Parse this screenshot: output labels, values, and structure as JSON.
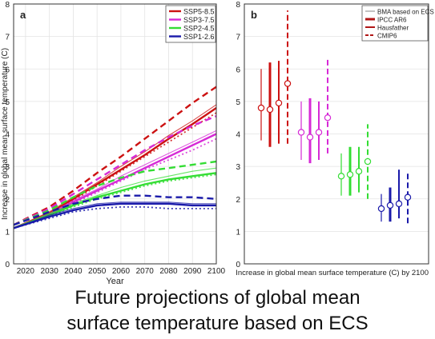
{
  "caption": {
    "line1": "Future projections of global mean",
    "line2": "surface temperature based on ECS"
  },
  "chart_data": [
    {
      "type": "line",
      "panel_label": "a",
      "xlabel": "Year",
      "ylabel": "Increase in global mean surface temperature (C)",
      "xlim": [
        2015,
        2100
      ],
      "ylim": [
        0,
        8
      ],
      "xticks": [
        2020,
        2030,
        2040,
        2050,
        2060,
        2070,
        2080,
        2090,
        2100
      ],
      "yticks": [
        0,
        1,
        2,
        3,
        4,
        5,
        6,
        7,
        8
      ],
      "grid": true,
      "legend": {
        "placement": "top-right",
        "entries": [
          {
            "label": "SSP5-8.5",
            "color": "#cc1111"
          },
          {
            "label": "SSP3-7.5",
            "color": "#d629d6"
          },
          {
            "label": "SSP2-4.5",
            "color": "#33dd33"
          },
          {
            "label": "SSP1-2.6",
            "color": "#1a1aaa"
          }
        ]
      },
      "series": [
        {
          "name": "SSP5-8.5",
          "color": "#cc1111",
          "style": "dashed",
          "x": [
            2015,
            2030,
            2040,
            2050,
            2060,
            2070,
            2080,
            2090,
            2100
          ],
          "values": [
            1.2,
            1.75,
            2.25,
            2.8,
            3.3,
            3.85,
            4.4,
            4.95,
            5.45
          ]
        },
        {
          "name": "SSP5-8.5",
          "color": "#cc1111",
          "style": "solid",
          "x": [
            2015,
            2030,
            2040,
            2050,
            2060,
            2070,
            2080,
            2090,
            2100
          ],
          "values": [
            1.1,
            1.55,
            2.0,
            2.45,
            2.9,
            3.35,
            3.85,
            4.3,
            4.8
          ]
        },
        {
          "name": "SSP5-8.5",
          "color": "#cc1111",
          "style": "thin",
          "x": [
            2015,
            2030,
            2040,
            2050,
            2060,
            2070,
            2080,
            2090,
            2100
          ],
          "values": [
            1.1,
            1.6,
            2.05,
            2.5,
            3.0,
            3.45,
            3.95,
            4.4,
            4.9
          ]
        },
        {
          "name": "SSP5-8.5",
          "color": "#cc1111",
          "style": "dotted",
          "x": [
            2015,
            2030,
            2040,
            2050,
            2060,
            2070,
            2080,
            2090,
            2100
          ],
          "values": [
            1.1,
            1.5,
            1.95,
            2.4,
            2.85,
            3.3,
            3.75,
            4.2,
            4.65
          ]
        },
        {
          "name": "SSP3-7.5",
          "color": "#d629d6",
          "style": "dashed",
          "x": [
            2015,
            2030,
            2040,
            2050,
            2060,
            2070,
            2080,
            2090,
            2100
          ],
          "values": [
            1.2,
            1.7,
            2.15,
            2.6,
            3.05,
            3.5,
            3.9,
            4.25,
            4.55
          ]
        },
        {
          "name": "SSP3-7.5",
          "color": "#d629d6",
          "style": "solid",
          "x": [
            2015,
            2030,
            2040,
            2050,
            2060,
            2070,
            2080,
            2090,
            2100
          ],
          "values": [
            1.1,
            1.5,
            1.9,
            2.25,
            2.6,
            2.95,
            3.3,
            3.65,
            4.0
          ]
        },
        {
          "name": "SSP3-7.5",
          "color": "#d629d6",
          "style": "thin",
          "x": [
            2015,
            2030,
            2040,
            2050,
            2060,
            2070,
            2080,
            2090,
            2100
          ],
          "values": [
            1.1,
            1.55,
            1.95,
            2.3,
            2.7,
            3.05,
            3.4,
            3.75,
            4.1
          ]
        },
        {
          "name": "SSP3-7.5",
          "color": "#d629d6",
          "style": "dotted",
          "x": [
            2015,
            2030,
            2040,
            2050,
            2060,
            2070,
            2080,
            2090,
            2100
          ],
          "values": [
            1.1,
            1.45,
            1.85,
            2.2,
            2.55,
            2.9,
            3.2,
            3.5,
            3.85
          ]
        },
        {
          "name": "SSP2-4.5",
          "color": "#33dd33",
          "style": "dashed",
          "x": [
            2015,
            2030,
            2040,
            2050,
            2060,
            2070,
            2080,
            2090,
            2100
          ],
          "values": [
            1.2,
            1.65,
            2.05,
            2.4,
            2.65,
            2.85,
            2.95,
            3.05,
            3.15
          ]
        },
        {
          "name": "SSP2-4.5",
          "color": "#33dd33",
          "style": "solid",
          "x": [
            2015,
            2030,
            2040,
            2050,
            2060,
            2070,
            2080,
            2090,
            2100
          ],
          "values": [
            1.1,
            1.5,
            1.8,
            2.05,
            2.25,
            2.45,
            2.6,
            2.7,
            2.8
          ]
        },
        {
          "name": "SSP2-4.5",
          "color": "#33dd33",
          "style": "thin",
          "x": [
            2015,
            2030,
            2040,
            2050,
            2060,
            2070,
            2080,
            2090,
            2100
          ],
          "values": [
            1.1,
            1.55,
            1.85,
            2.1,
            2.35,
            2.55,
            2.7,
            2.85,
            2.95
          ]
        },
        {
          "name": "SSP2-4.5",
          "color": "#33dd33",
          "style": "dotted",
          "x": [
            2015,
            2030,
            2040,
            2050,
            2060,
            2070,
            2080,
            2090,
            2100
          ],
          "values": [
            1.1,
            1.45,
            1.75,
            2.0,
            2.2,
            2.4,
            2.55,
            2.65,
            2.75
          ]
        },
        {
          "name": "SSP1-2.6",
          "color": "#1a1aaa",
          "style": "dashed",
          "x": [
            2015,
            2030,
            2040,
            2050,
            2060,
            2070,
            2080,
            2090,
            2100
          ],
          "values": [
            1.2,
            1.6,
            1.85,
            2.0,
            2.1,
            2.1,
            2.05,
            2.05,
            2.0
          ]
        },
        {
          "name": "SSP1-2.6",
          "color": "#1a1aaa",
          "style": "solid",
          "x": [
            2015,
            2030,
            2040,
            2050,
            2060,
            2070,
            2080,
            2090,
            2100
          ],
          "values": [
            1.1,
            1.45,
            1.65,
            1.8,
            1.85,
            1.85,
            1.85,
            1.8,
            1.8
          ]
        },
        {
          "name": "SSP1-2.6",
          "color": "#1a1aaa",
          "style": "thin",
          "x": [
            2015,
            2030,
            2040,
            2050,
            2060,
            2070,
            2080,
            2090,
            2100
          ],
          "values": [
            1.1,
            1.5,
            1.7,
            1.85,
            1.9,
            1.9,
            1.9,
            1.85,
            1.85
          ]
        },
        {
          "name": "SSP1-2.6",
          "color": "#1a1aaa",
          "style": "dotted",
          "x": [
            2015,
            2030,
            2040,
            2050,
            2060,
            2070,
            2080,
            2090,
            2100
          ],
          "values": [
            1.1,
            1.4,
            1.6,
            1.7,
            1.75,
            1.75,
            1.7,
            1.7,
            1.7
          ]
        }
      ]
    },
    {
      "type": "errorbar",
      "panel_label": "b",
      "xlabel": "Increase in global mean surface temperature (C) by 2100",
      "ylim": [
        0,
        8
      ],
      "yticks": [
        0,
        1,
        2,
        3,
        4,
        5,
        6,
        7,
        8
      ],
      "grid": true,
      "legend": {
        "placement": "top-right",
        "entries": [
          {
            "label": "BMA based on ECS",
            "style": "thin"
          },
          {
            "label": "IPCC AR6",
            "style": "thick"
          },
          {
            "label": "Hausfather",
            "style": "solid"
          },
          {
            "label": "CMIP6",
            "style": "dashed"
          }
        ]
      },
      "groups": [
        {
          "scenario": "SSP5-8.5",
          "color": "#cc1111",
          "bars": [
            {
              "method": "BMA based on ECS",
              "style": "thin",
              "center": 4.8,
              "low": 3.8,
              "high": 6.0
            },
            {
              "method": "IPCC AR6",
              "style": "thick",
              "center": 4.75,
              "low": 3.6,
              "high": 6.2
            },
            {
              "method": "Hausfather",
              "style": "solid",
              "center": 4.95,
              "low": 3.7,
              "high": 6.25
            },
            {
              "method": "CMIP6",
              "style": "dashed",
              "center": 5.55,
              "low": 3.7,
              "high": 7.8
            }
          ]
        },
        {
          "scenario": "SSP3-7.5",
          "color": "#d629d6",
          "bars": [
            {
              "method": "BMA based on ECS",
              "style": "thin",
              "center": 4.05,
              "low": 3.2,
              "high": 5.0
            },
            {
              "method": "IPCC AR6",
              "style": "thick",
              "center": 3.9,
              "low": 3.1,
              "high": 5.1
            },
            {
              "method": "Hausfather",
              "style": "solid",
              "center": 4.05,
              "low": 3.2,
              "high": 5.0
            },
            {
              "method": "CMIP6",
              "style": "dashed",
              "center": 4.5,
              "low": 3.4,
              "high": 6.3
            }
          ]
        },
        {
          "scenario": "SSP2-4.5",
          "color": "#33dd33",
          "bars": [
            {
              "method": "BMA based on ECS",
              "style": "thin",
              "center": 2.7,
              "low": 2.1,
              "high": 3.4
            },
            {
              "method": "IPCC AR6",
              "style": "thick",
              "center": 2.75,
              "low": 2.1,
              "high": 3.6
            },
            {
              "method": "Hausfather",
              "style": "solid",
              "center": 2.85,
              "low": 2.2,
              "high": 3.6
            },
            {
              "method": "CMIP6",
              "style": "dashed",
              "center": 3.15,
              "low": 2.0,
              "high": 4.3
            }
          ]
        },
        {
          "scenario": "SSP1-2.6",
          "color": "#1a1aaa",
          "bars": [
            {
              "method": "BMA based on ECS",
              "style": "thin",
              "center": 1.7,
              "low": 1.3,
              "high": 2.15
            },
            {
              "method": "IPCC AR6",
              "style": "thick",
              "center": 1.8,
              "low": 1.3,
              "high": 2.35
            },
            {
              "method": "Hausfather",
              "style": "solid",
              "center": 1.85,
              "low": 1.4,
              "high": 2.9
            },
            {
              "method": "CMIP6",
              "style": "dashed",
              "center": 2.05,
              "low": 1.25,
              "high": 2.85
            }
          ]
        }
      ]
    }
  ]
}
